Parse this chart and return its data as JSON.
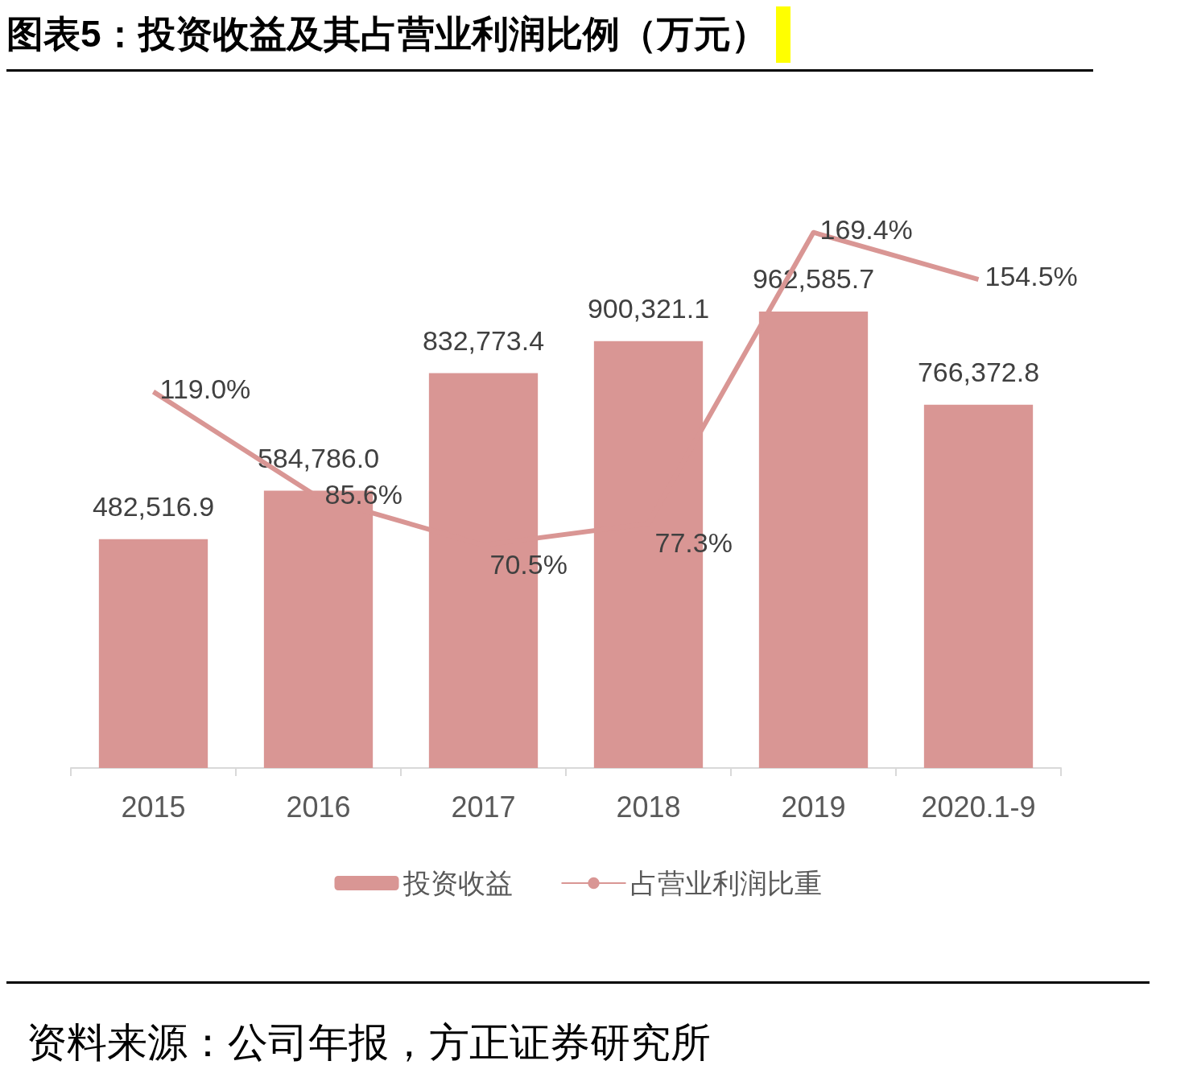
{
  "chart_data": {
    "type": "bar",
    "title": "图表5：投资收益及其占营业利润比例（万元）",
    "categories": [
      "2015",
      "2016",
      "2017",
      "2018",
      "2019",
      "2020.1-9"
    ],
    "series": [
      {
        "name": "投资收益",
        "color": "#d99694",
        "values": [
          482516.9,
          584786.0,
          832773.4,
          900321.1,
          962585.7,
          766372.8
        ],
        "value_labels": [
          "482,516.9",
          "584,786.0",
          "832,773.4",
          "900,321.1",
          "962,585.7",
          "766,372.8"
        ]
      },
      {
        "name": "占营业利润比重",
        "type": "line",
        "axis": "y2",
        "color": "#d99694",
        "values": [
          119.0,
          85.6,
          70.5,
          77.3,
          169.4,
          154.5
        ],
        "value_labels": [
          "119.0%",
          "85.6%",
          "70.5%",
          "77.3%",
          "169.4%",
          "154.5%"
        ]
      }
    ],
    "legend": "bottom",
    "marker": "none",
    "annotations": [
      "资料来源：公司年报，方正证券研究所"
    ]
  }
}
